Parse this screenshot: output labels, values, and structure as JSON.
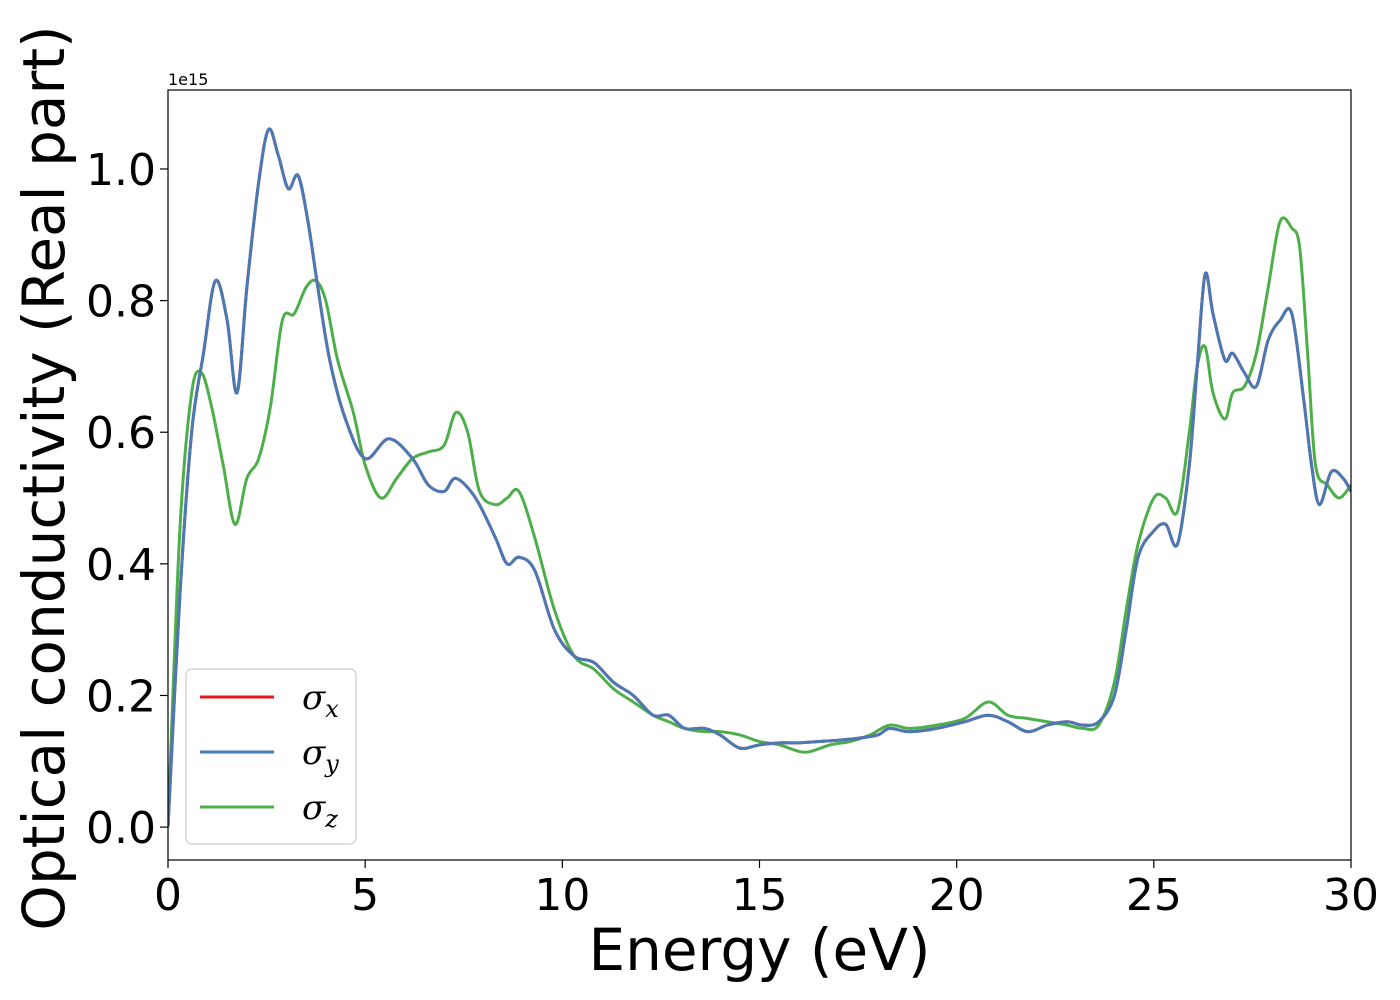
{
  "chart_data": {
    "type": "line",
    "xlabel": "Energy (eV)",
    "ylabel": "Optical conductivity (Real part)",
    "y_offset_label": "1e15",
    "xlim": [
      0,
      30
    ],
    "ylim": [
      -0.05,
      1.12
    ],
    "x_ticks": [
      0,
      5,
      10,
      15,
      20,
      25,
      30
    ],
    "x_tick_labels": [
      "0",
      "5",
      "10",
      "15",
      "20",
      "25",
      "30"
    ],
    "y_ticks": [
      0.0,
      0.2,
      0.4,
      0.6,
      0.8,
      1.0
    ],
    "y_tick_labels": [
      "0.0",
      "0.2",
      "0.4",
      "0.6",
      "0.8",
      "1.0"
    ],
    "grid": false,
    "legend_position": "lower-left",
    "series": [
      {
        "name": "σx",
        "symbol": "σ",
        "subscript": "x",
        "color": "#e41a1c",
        "x": [
          0,
          0.3,
          0.6,
          0.9,
          1.2,
          1.5,
          1.75,
          2.0,
          2.3,
          2.55,
          2.8,
          3.05,
          3.3,
          3.55,
          3.8,
          4.1,
          4.5,
          5.0,
          5.6,
          6.2,
          6.6,
          7.0,
          7.3,
          7.8,
          8.3,
          8.6,
          8.9,
          9.3,
          9.8,
          10.3,
          10.8,
          11.3,
          11.8,
          12.3,
          12.7,
          13.1,
          13.6,
          14.0,
          14.5,
          15.0,
          15.5,
          16.0,
          16.5,
          17.0,
          17.5,
          18.0,
          18.3,
          18.8,
          19.5,
          20.2,
          20.8,
          21.3,
          21.8,
          22.3,
          22.8,
          23.2,
          23.6,
          24.0,
          24.3,
          24.6,
          25.0,
          25.3,
          25.6,
          25.9,
          26.1,
          26.3,
          26.5,
          26.8,
          27.0,
          27.3,
          27.6,
          27.9,
          28.2,
          28.5,
          28.8,
          29.0,
          29.2,
          29.5,
          29.8,
          30.0
        ],
        "values": [
          0,
          0.35,
          0.6,
          0.72,
          0.83,
          0.77,
          0.66,
          0.82,
          0.98,
          1.06,
          1.02,
          0.97,
          0.99,
          0.92,
          0.82,
          0.71,
          0.62,
          0.56,
          0.59,
          0.56,
          0.52,
          0.51,
          0.53,
          0.5,
          0.44,
          0.4,
          0.41,
          0.39,
          0.3,
          0.26,
          0.25,
          0.22,
          0.2,
          0.17,
          0.17,
          0.15,
          0.15,
          0.14,
          0.12,
          0.125,
          0.128,
          0.128,
          0.13,
          0.132,
          0.135,
          0.14,
          0.15,
          0.145,
          0.15,
          0.16,
          0.17,
          0.16,
          0.145,
          0.155,
          0.16,
          0.155,
          0.16,
          0.2,
          0.3,
          0.41,
          0.45,
          0.46,
          0.43,
          0.55,
          0.7,
          0.84,
          0.78,
          0.71,
          0.72,
          0.69,
          0.67,
          0.74,
          0.77,
          0.78,
          0.65,
          0.55,
          0.49,
          0.54,
          0.53,
          0.51
        ]
      },
      {
        "name": "σy",
        "symbol": "σ",
        "subscript": "y",
        "color": "#4a7ab5",
        "x": [
          0,
          0.3,
          0.6,
          0.9,
          1.2,
          1.5,
          1.75,
          2.0,
          2.3,
          2.55,
          2.8,
          3.05,
          3.3,
          3.55,
          3.8,
          4.1,
          4.5,
          5.0,
          5.6,
          6.2,
          6.6,
          7.0,
          7.3,
          7.8,
          8.3,
          8.6,
          8.9,
          9.3,
          9.8,
          10.3,
          10.8,
          11.3,
          11.8,
          12.3,
          12.7,
          13.1,
          13.6,
          14.0,
          14.5,
          15.0,
          15.5,
          16.0,
          16.5,
          17.0,
          17.5,
          18.0,
          18.3,
          18.8,
          19.5,
          20.2,
          20.8,
          21.3,
          21.8,
          22.3,
          22.8,
          23.2,
          23.6,
          24.0,
          24.3,
          24.6,
          25.0,
          25.3,
          25.6,
          25.9,
          26.1,
          26.3,
          26.5,
          26.8,
          27.0,
          27.3,
          27.6,
          27.9,
          28.2,
          28.5,
          28.8,
          29.0,
          29.2,
          29.5,
          29.8,
          30.0
        ],
        "values": [
          0,
          0.35,
          0.6,
          0.72,
          0.83,
          0.77,
          0.66,
          0.82,
          0.98,
          1.06,
          1.02,
          0.97,
          0.99,
          0.92,
          0.82,
          0.71,
          0.62,
          0.56,
          0.59,
          0.56,
          0.52,
          0.51,
          0.53,
          0.5,
          0.44,
          0.4,
          0.41,
          0.39,
          0.3,
          0.26,
          0.25,
          0.22,
          0.2,
          0.17,
          0.17,
          0.15,
          0.15,
          0.14,
          0.12,
          0.125,
          0.128,
          0.128,
          0.13,
          0.132,
          0.135,
          0.14,
          0.15,
          0.145,
          0.15,
          0.16,
          0.17,
          0.16,
          0.145,
          0.155,
          0.16,
          0.155,
          0.16,
          0.2,
          0.3,
          0.41,
          0.45,
          0.46,
          0.43,
          0.55,
          0.7,
          0.84,
          0.78,
          0.71,
          0.72,
          0.69,
          0.67,
          0.74,
          0.77,
          0.78,
          0.65,
          0.55,
          0.49,
          0.54,
          0.53,
          0.51
        ]
      },
      {
        "name": "σz",
        "symbol": "σ",
        "subscript": "z",
        "color": "#4daf4a",
        "x": [
          0,
          0.3,
          0.6,
          0.85,
          1.1,
          1.4,
          1.7,
          2.0,
          2.3,
          2.6,
          2.9,
          3.2,
          3.5,
          3.75,
          4.0,
          4.3,
          4.7,
          5.0,
          5.4,
          5.8,
          6.2,
          6.6,
          7.0,
          7.3,
          7.6,
          7.9,
          8.3,
          8.6,
          8.9,
          9.3,
          9.8,
          10.3,
          10.8,
          11.3,
          11.8,
          12.3,
          12.7,
          13.1,
          13.6,
          14.0,
          14.5,
          15.0,
          15.5,
          16.0,
          16.3,
          16.8,
          17.3,
          17.8,
          18.3,
          18.8,
          19.5,
          20.2,
          20.8,
          21.3,
          21.8,
          22.3,
          22.8,
          23.2,
          23.6,
          24.0,
          24.3,
          24.6,
          25.0,
          25.3,
          25.6,
          25.9,
          26.1,
          26.3,
          26.5,
          26.8,
          27.0,
          27.3,
          27.6,
          27.9,
          28.2,
          28.5,
          28.7,
          28.9,
          29.1,
          29.4,
          29.7,
          30.0
        ],
        "values": [
          0,
          0.45,
          0.66,
          0.69,
          0.64,
          0.55,
          0.46,
          0.53,
          0.56,
          0.64,
          0.77,
          0.78,
          0.82,
          0.83,
          0.8,
          0.71,
          0.63,
          0.55,
          0.5,
          0.53,
          0.56,
          0.57,
          0.58,
          0.63,
          0.6,
          0.51,
          0.49,
          0.5,
          0.51,
          0.44,
          0.33,
          0.26,
          0.24,
          0.21,
          0.19,
          0.17,
          0.16,
          0.15,
          0.145,
          0.145,
          0.14,
          0.13,
          0.125,
          0.115,
          0.115,
          0.125,
          0.13,
          0.14,
          0.155,
          0.15,
          0.155,
          0.165,
          0.19,
          0.17,
          0.165,
          0.16,
          0.155,
          0.15,
          0.155,
          0.22,
          0.33,
          0.43,
          0.5,
          0.5,
          0.48,
          0.6,
          0.7,
          0.73,
          0.66,
          0.62,
          0.66,
          0.67,
          0.72,
          0.82,
          0.92,
          0.91,
          0.88,
          0.72,
          0.55,
          0.52,
          0.5,
          0.52
        ]
      }
    ]
  }
}
